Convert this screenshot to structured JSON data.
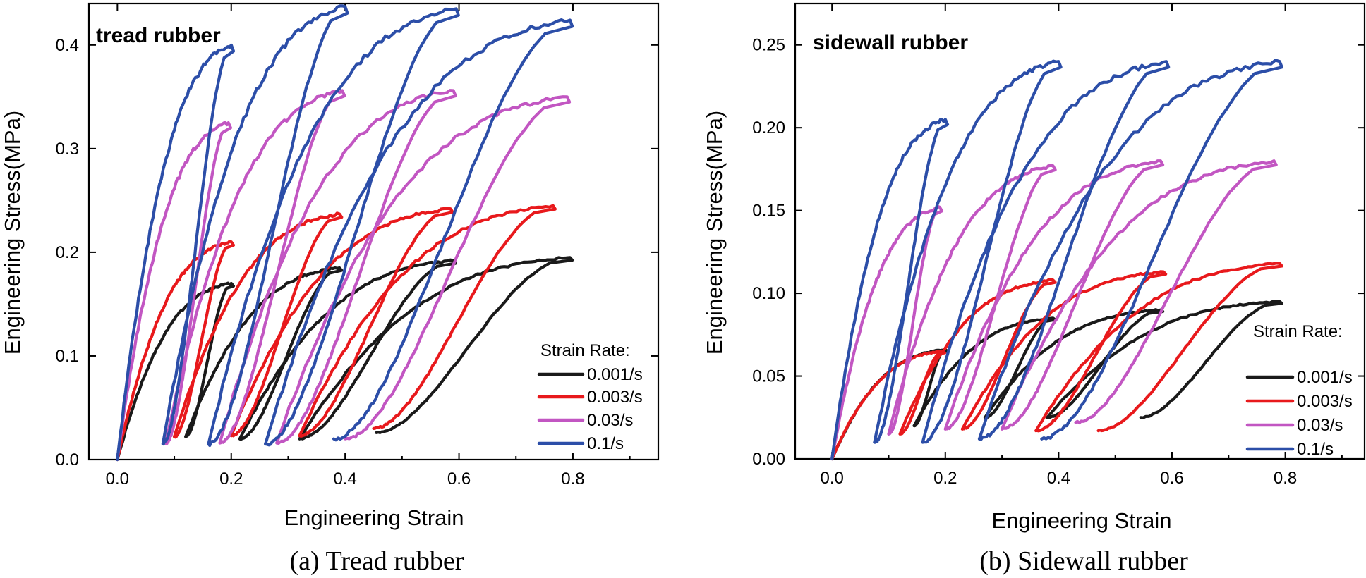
{
  "chart_data": [
    {
      "type": "line",
      "title": "tread rubber",
      "caption": "(a) Tread rubber",
      "xlabel": "Engineering Strain",
      "ylabel": "Engineering Stress(MPa)",
      "xlim": [
        -0.05,
        0.95
      ],
      "ylim": [
        0.0,
        0.44
      ],
      "xticks": [
        0.0,
        0.2,
        0.4,
        0.6,
        0.8
      ],
      "xtick_labels": [
        "0.0",
        "0.2",
        "0.4",
        "0.6",
        "0.8"
      ],
      "yticks": [
        0.0,
        0.1,
        0.2,
        0.3,
        0.4
      ],
      "ytick_labels": [
        "0.0",
        "0.1",
        "0.2",
        "0.3",
        "0.4"
      ],
      "legend": {
        "title": "Strain Rate:",
        "position": "bottom-right"
      },
      "grid": false,
      "series": [
        {
          "name": "0.001/s",
          "color": "#1a1a1a",
          "loops": [
            {
              "start": [
                0.0,
                0.0
              ],
              "peak": [
                0.2,
                0.17
              ],
              "end": [
                0.12,
                0.022
              ]
            },
            {
              "start": [
                0.12,
                0.022
              ],
              "peak": [
                0.39,
                0.185
              ],
              "end": [
                0.215,
                0.02
              ]
            },
            {
              "start": [
                0.215,
                0.02
              ],
              "peak": [
                0.59,
                0.192
              ],
              "end": [
                0.32,
                0.02
              ]
            },
            {
              "start": [
                0.32,
                0.02
              ],
              "peak": [
                0.795,
                0.195
              ],
              "end": [
                0.455,
                0.026
              ]
            }
          ]
        },
        {
          "name": "0.003/s",
          "color": "#e8191c",
          "loops": [
            {
              "start": [
                0.0,
                0.0
              ],
              "peak": [
                0.2,
                0.21
              ],
              "end": [
                0.1,
                0.022
              ]
            },
            {
              "start": [
                0.1,
                0.022
              ],
              "peak": [
                0.39,
                0.237
              ],
              "end": [
                0.2,
                0.023
              ]
            },
            {
              "start": [
                0.2,
                0.023
              ],
              "peak": [
                0.585,
                0.242
              ],
              "end": [
                0.32,
                0.023
              ]
            },
            {
              "start": [
                0.32,
                0.023
              ],
              "peak": [
                0.765,
                0.245
              ],
              "end": [
                0.45,
                0.03
              ]
            }
          ]
        },
        {
          "name": "0.03/s",
          "color": "#c256c2",
          "loops": [
            {
              "start": [
                0.0,
                0.0
              ],
              "peak": [
                0.195,
                0.325
              ],
              "end": [
                0.085,
                0.016
              ]
            },
            {
              "start": [
                0.085,
                0.016
              ],
              "peak": [
                0.395,
                0.356
              ],
              "end": [
                0.18,
                0.016
              ]
            },
            {
              "start": [
                0.18,
                0.016
              ],
              "peak": [
                0.59,
                0.356
              ],
              "end": [
                0.28,
                0.016
              ]
            },
            {
              "start": [
                0.28,
                0.016
              ],
              "peak": [
                0.79,
                0.35
              ],
              "end": [
                0.4,
                0.02
              ]
            }
          ]
        },
        {
          "name": "0.1/s",
          "color": "#2c4ea8",
          "loops": [
            {
              "start": [
                0.0,
                0.0
              ],
              "peak": [
                0.2,
                0.4
              ],
              "end": [
                0.08,
                0.015
              ]
            },
            {
              "start": [
                0.08,
                0.015
              ],
              "peak": [
                0.4,
                0.437
              ],
              "end": [
                0.16,
                0.015
              ]
            },
            {
              "start": [
                0.16,
                0.015
              ],
              "peak": [
                0.595,
                0.435
              ],
              "end": [
                0.26,
                0.015
              ]
            },
            {
              "start": [
                0.26,
                0.015
              ],
              "peak": [
                0.795,
                0.424
              ],
              "end": [
                0.38,
                0.02
              ]
            }
          ]
        }
      ]
    },
    {
      "type": "line",
      "title": "sidewall rubber",
      "caption": "(b) Sidewall rubber",
      "xlabel": "Engineering Strain",
      "ylabel": "Engineering Stress(MPa)",
      "xlim": [
        -0.065,
        0.94
      ],
      "ylim": [
        0.0,
        0.275
      ],
      "xticks": [
        0.0,
        0.2,
        0.4,
        0.6,
        0.8
      ],
      "xtick_labels": [
        "0.0",
        "0.2",
        "0.4",
        "0.6",
        "0.8"
      ],
      "yticks": [
        0.0,
        0.05,
        0.1,
        0.15,
        0.2,
        0.25
      ],
      "ytick_labels": [
        "0.00",
        "0.05",
        "0.10",
        "0.15",
        "0.20",
        "0.25"
      ],
      "legend": {
        "title": "Strain Rate:",
        "position": "bottom-right"
      },
      "grid": false,
      "series": [
        {
          "name": "0.001/s",
          "color": "#1a1a1a",
          "loops": [
            {
              "start": [
                0.0,
                0.0
              ],
              "peak": [
                0.2,
                0.066
              ],
              "end": [
                0.145,
                0.02
              ]
            },
            {
              "start": [
                0.145,
                0.02
              ],
              "peak": [
                0.39,
                0.085
              ],
              "end": [
                0.27,
                0.025
              ]
            },
            {
              "start": [
                0.27,
                0.025
              ],
              "peak": [
                0.58,
                0.09
              ],
              "end": [
                0.38,
                0.025
              ]
            },
            {
              "start": [
                0.38,
                0.025
              ],
              "peak": [
                0.79,
                0.095
              ],
              "end": [
                0.545,
                0.025
              ]
            }
          ]
        },
        {
          "name": "0.003/s",
          "color": "#e8191c",
          "loops": [
            {
              "start": [
                0.0,
                0.0
              ],
              "peak": [
                0.195,
                0.065
              ],
              "end": [
                0.12,
                0.015
              ]
            },
            {
              "start": [
                0.12,
                0.015
              ],
              "peak": [
                0.39,
                0.108
              ],
              "end": [
                0.23,
                0.018
              ]
            },
            {
              "start": [
                0.23,
                0.018
              ],
              "peak": [
                0.585,
                0.113
              ],
              "end": [
                0.36,
                0.017
              ]
            },
            {
              "start": [
                0.36,
                0.017
              ],
              "peak": [
                0.79,
                0.118
              ],
              "end": [
                0.47,
                0.017
              ]
            }
          ]
        },
        {
          "name": "0.03/s",
          "color": "#c256c2",
          "loops": [
            {
              "start": [
                0.0,
                0.0
              ],
              "peak": [
                0.19,
                0.152
              ],
              "end": [
                0.1,
                0.015
              ]
            },
            {
              "start": [
                0.1,
                0.015
              ],
              "peak": [
                0.39,
                0.177
              ],
              "end": [
                0.2,
                0.018
              ]
            },
            {
              "start": [
                0.2,
                0.018
              ],
              "peak": [
                0.58,
                0.18
              ],
              "end": [
                0.3,
                0.018
              ]
            },
            {
              "start": [
                0.3,
                0.018
              ],
              "peak": [
                0.78,
                0.18
              ],
              "end": [
                0.43,
                0.022
              ]
            }
          ]
        },
        {
          "name": "0.1/s",
          "color": "#2c4ea8",
          "loops": [
            {
              "start": [
                0.0,
                0.0
              ],
              "peak": [
                0.2,
                0.205
              ],
              "end": [
                0.075,
                0.01
              ]
            },
            {
              "start": [
                0.075,
                0.01
              ],
              "peak": [
                0.4,
                0.24
              ],
              "end": [
                0.16,
                0.01
              ]
            },
            {
              "start": [
                0.16,
                0.01
              ],
              "peak": [
                0.59,
                0.24
              ],
              "end": [
                0.26,
                0.012
              ]
            },
            {
              "start": [
                0.26,
                0.012
              ],
              "peak": [
                0.79,
                0.24
              ],
              "end": [
                0.37,
                0.012
              ]
            }
          ]
        }
      ]
    }
  ]
}
